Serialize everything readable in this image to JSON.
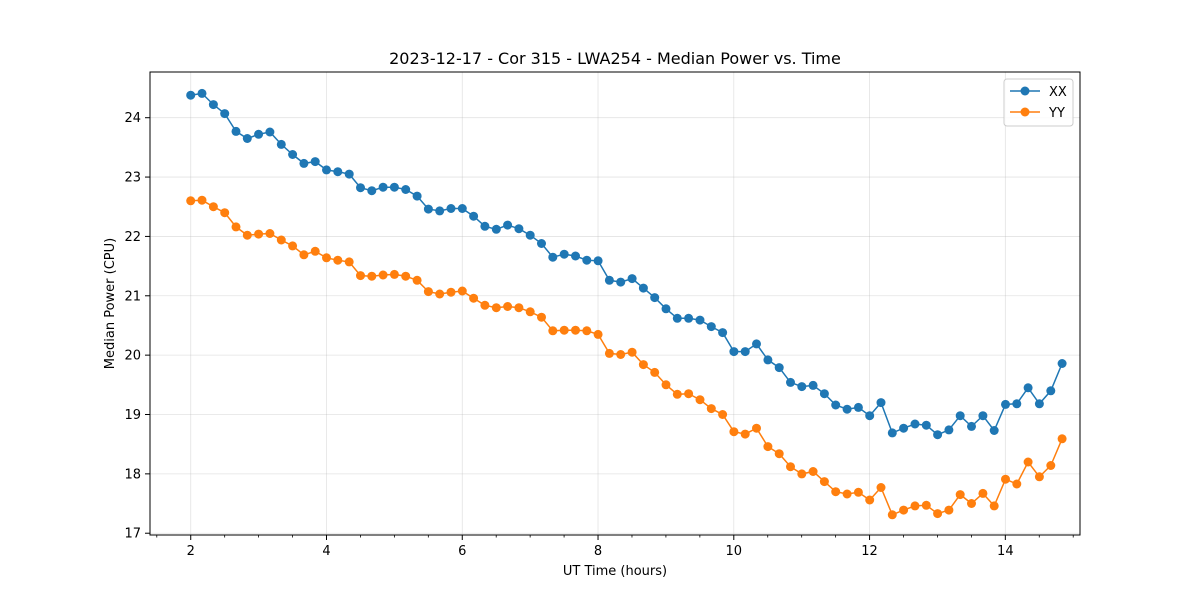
{
  "chart_data": {
    "type": "line",
    "title": "2023-12-17 - Cor 315 - LWA254 - Median Power vs. Time",
    "xlabel": "UT Time (hours)",
    "ylabel": "Median Power (CPU)",
    "xlim": [
      1.4,
      15.1
    ],
    "ylim": [
      16.97,
      24.77
    ],
    "xticks": [
      2,
      4,
      6,
      8,
      10,
      12,
      14
    ],
    "xtick_labels": [
      "2",
      "4",
      "6",
      "8",
      "10",
      "12",
      "14"
    ],
    "xminor_step": 0.5,
    "yticks": [
      17,
      18,
      19,
      20,
      21,
      22,
      23,
      24
    ],
    "ytick_labels": [
      "17",
      "18",
      "19",
      "20",
      "21",
      "22",
      "23",
      "24"
    ],
    "grid": true,
    "legend_position": "top-right",
    "x_start": 2.0,
    "x_step": 0.1667,
    "series": [
      {
        "name": "XX",
        "color": "#1f77b4",
        "marker": "circle",
        "values": [
          24.38,
          24.41,
          24.22,
          24.07,
          23.77,
          23.65,
          23.72,
          23.76,
          23.55,
          23.38,
          23.23,
          23.26,
          23.12,
          23.09,
          23.05,
          22.82,
          22.77,
          22.83,
          22.83,
          22.79,
          22.68,
          22.46,
          22.43,
          22.47,
          22.47,
          22.34,
          22.17,
          22.12,
          22.19,
          22.13,
          22.02,
          21.88,
          21.65,
          21.7,
          21.67,
          21.6,
          21.59,
          21.26,
          21.23,
          21.29,
          21.13,
          20.97,
          20.78,
          20.62,
          20.62,
          20.59,
          20.48,
          20.38,
          20.06,
          20.06,
          20.19,
          19.92,
          19.79,
          19.54,
          19.47,
          19.49,
          19.35,
          19.16,
          19.09,
          19.12,
          18.98,
          19.2,
          18.69,
          18.77,
          18.84,
          18.82,
          18.66,
          18.74,
          18.98,
          18.8,
          18.98,
          18.73,
          19.17,
          19.18,
          19.45,
          19.18,
          19.4,
          19.86
        ]
      },
      {
        "name": "YY",
        "color": "#ff7f0e",
        "marker": "circle",
        "values": [
          22.6,
          22.61,
          22.5,
          22.4,
          22.16,
          22.02,
          22.04,
          22.05,
          21.94,
          21.84,
          21.69,
          21.75,
          21.64,
          21.6,
          21.57,
          21.34,
          21.33,
          21.35,
          21.36,
          21.33,
          21.26,
          21.07,
          21.03,
          21.06,
          21.08,
          20.96,
          20.84,
          20.8,
          20.82,
          20.8,
          20.73,
          20.64,
          20.41,
          20.42,
          20.42,
          20.41,
          20.35,
          20.03,
          20.01,
          20.05,
          19.84,
          19.71,
          19.5,
          19.34,
          19.35,
          19.25,
          19.1,
          19.0,
          18.71,
          18.67,
          18.77,
          18.46,
          18.34,
          18.12,
          18.0,
          18.04,
          17.87,
          17.7,
          17.66,
          17.69,
          17.56,
          17.77,
          17.31,
          17.39,
          17.46,
          17.47,
          17.33,
          17.39,
          17.65,
          17.5,
          17.67,
          17.46,
          17.91,
          17.83,
          18.2,
          17.95,
          18.14,
          18.59
        ]
      }
    ]
  }
}
